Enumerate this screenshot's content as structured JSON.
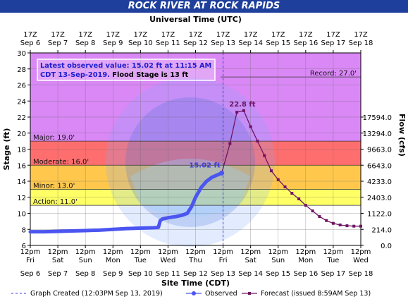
{
  "title": "ROCK RIVER AT ROCK RAPIDS",
  "chart_data": {
    "type": "line",
    "top_axis_label": "Universal Time (UTC)",
    "bottom_axis_label": "Site Time (CDT)",
    "ylabel": "Stage (ft)",
    "ylabel_right": "Flow (cfs)",
    "ylim": [
      6,
      30
    ],
    "y_ticks": [
      6,
      8,
      10,
      12,
      14,
      16,
      18,
      20,
      22,
      24,
      26,
      28,
      30
    ],
    "top_ticks": [
      {
        "t": 0,
        "l1": "17Z",
        "l2": "Sep 6"
      },
      {
        "t": 1,
        "l1": "17Z",
        "l2": "Sep 7"
      },
      {
        "t": 2,
        "l1": "17Z",
        "l2": "Sep 8"
      },
      {
        "t": 3,
        "l1": "17Z",
        "l2": "Sep 9"
      },
      {
        "t": 4,
        "l1": "17Z",
        "l2": "Sep 10"
      },
      {
        "t": 5,
        "l1": "17Z",
        "l2": "Sep 11"
      },
      {
        "t": 6,
        "l1": "17Z",
        "l2": "Sep 12"
      },
      {
        "t": 7,
        "l1": "17Z",
        "l2": "Sep 13"
      },
      {
        "t": 8,
        "l1": "17Z",
        "l2": "Sep 14"
      },
      {
        "t": 9,
        "l1": "17Z",
        "l2": "Sep 15"
      },
      {
        "t": 10,
        "l1": "17Z",
        "l2": "Sep 16"
      },
      {
        "t": 11,
        "l1": "17Z",
        "l2": "Sep 17"
      },
      {
        "t": 12,
        "l1": "17Z",
        "l2": "Sep 18"
      }
    ],
    "bottom_ticks": [
      {
        "t": 0,
        "l1": "12pm",
        "l2": "Fri",
        "l3": "Sep 6"
      },
      {
        "t": 1,
        "l1": "12pm",
        "l2": "Sat",
        "l3": "Sep 7"
      },
      {
        "t": 2,
        "l1": "12pm",
        "l2": "Sun",
        "l3": "Sep 8"
      },
      {
        "t": 3,
        "l1": "12pm",
        "l2": "Mon",
        "l3": "Sep 9"
      },
      {
        "t": 4,
        "l1": "12pm",
        "l2": "Tue",
        "l3": "Sep 10"
      },
      {
        "t": 5,
        "l1": "12pm",
        "l2": "Wed",
        "l3": "Sep 11"
      },
      {
        "t": 6,
        "l1": "12pm",
        "l2": "Thu",
        "l3": "Sep 12"
      },
      {
        "t": 7,
        "l1": "12pm",
        "l2": "Fri",
        "l3": "Sep 13"
      },
      {
        "t": 8,
        "l1": "12pm",
        "l2": "Sat",
        "l3": "Sep 14"
      },
      {
        "t": 9,
        "l1": "12pm",
        "l2": "Sun",
        "l3": "Sep 15"
      },
      {
        "t": 10,
        "l1": "12pm",
        "l2": "Mon",
        "l3": "Sep 16"
      },
      {
        "t": 11,
        "l1": "12pm",
        "l2": "Tue",
        "l3": "Sep 17"
      },
      {
        "t": 12,
        "l1": "12pm",
        "l2": "Wed",
        "l3": "Sep 18"
      }
    ],
    "flow_ticks": [
      {
        "stage": 6,
        "label": "0.0"
      },
      {
        "stage": 8,
        "label": "214.0"
      },
      {
        "stage": 10,
        "label": "1122.0"
      },
      {
        "stage": 12,
        "label": "2403.0"
      },
      {
        "stage": 14,
        "label": "4233.0"
      },
      {
        "stage": 16,
        "label": "6643.0"
      },
      {
        "stage": 18,
        "label": "9663.0"
      },
      {
        "stage": 20,
        "label": "13294.0"
      },
      {
        "stage": 22,
        "label": "17594.0"
      }
    ],
    "bands": [
      {
        "from": 6,
        "to": 11,
        "color": "#ffffff"
      },
      {
        "from": 11,
        "to": 13,
        "color": "#ffff66"
      },
      {
        "from": 13,
        "to": 16,
        "color": "#ffc84d"
      },
      {
        "from": 16,
        "to": 19,
        "color": "#ff6e6e"
      },
      {
        "from": 19,
        "to": 30,
        "color": "#d988f5"
      }
    ],
    "thresholds": [
      {
        "label": "Action: 11.0'",
        "value": 11
      },
      {
        "label": "Minor: 13.0'",
        "value": 13
      },
      {
        "label": "Moderate: 16.0'",
        "value": 16
      },
      {
        "label": "Major: 19.0'",
        "value": 19
      }
    ],
    "record": {
      "label": "Record: 27.0'",
      "value": 27
    },
    "info_box": {
      "line1": "Latest observed value: 15.02 ft at 11:15 AM",
      "line2a": "CDT 13-Sep-2019. ",
      "line2b": "Flood Stage is 13 ft"
    },
    "annotations": {
      "latest": "15.02 ft",
      "crest": "22.8 ft"
    },
    "graph_created_t": 7.0,
    "series": [
      {
        "name": "Observed",
        "color": "#4b55f0",
        "points": [
          [
            0.0,
            7.7
          ],
          [
            0.5,
            7.7
          ],
          [
            1.0,
            7.75
          ],
          [
            1.5,
            7.8
          ],
          [
            2.0,
            7.85
          ],
          [
            2.5,
            7.9
          ],
          [
            3.0,
            8.0
          ],
          [
            3.5,
            8.1
          ],
          [
            4.0,
            8.15
          ],
          [
            4.5,
            8.2
          ],
          [
            4.65,
            8.25
          ],
          [
            4.72,
            9.1
          ],
          [
            4.8,
            9.3
          ],
          [
            5.0,
            9.45
          ],
          [
            5.3,
            9.6
          ],
          [
            5.5,
            9.75
          ],
          [
            5.7,
            10.0
          ],
          [
            5.85,
            10.8
          ],
          [
            6.0,
            12.0
          ],
          [
            6.2,
            13.2
          ],
          [
            6.4,
            14.0
          ],
          [
            6.6,
            14.5
          ],
          [
            6.8,
            14.8
          ],
          [
            6.95,
            15.02
          ]
        ]
      },
      {
        "name": "Forecast (issued 8:59AM Sep 13)",
        "color": "#6e1463",
        "points": [
          [
            6.95,
            15.02
          ],
          [
            7.25,
            18.7
          ],
          [
            7.5,
            22.6
          ],
          [
            7.75,
            22.8
          ],
          [
            8.0,
            20.8
          ],
          [
            8.25,
            19.0
          ],
          [
            8.5,
            17.2
          ],
          [
            8.75,
            15.3
          ],
          [
            9.0,
            14.2
          ],
          [
            9.25,
            13.3
          ],
          [
            9.5,
            12.5
          ],
          [
            9.75,
            11.8
          ],
          [
            10.0,
            11.0
          ],
          [
            10.25,
            10.3
          ],
          [
            10.5,
            9.6
          ],
          [
            10.75,
            9.1
          ],
          [
            11.0,
            8.75
          ],
          [
            11.25,
            8.55
          ],
          [
            11.5,
            8.45
          ],
          [
            11.75,
            8.4
          ],
          [
            12.0,
            8.4
          ]
        ]
      }
    ],
    "legend": {
      "created": "Graph Created (12:03PM Sep 13, 2019)",
      "observed": "Observed",
      "forecast": "Forecast (issued 8:59AM Sep 13)"
    }
  }
}
